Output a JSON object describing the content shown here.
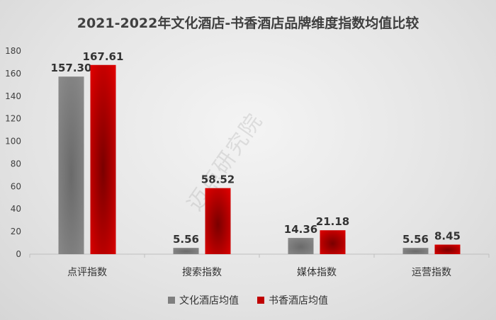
{
  "chart_data": {
    "type": "bar",
    "title": "2021-2022年文化酒店-书香酒店品牌维度指数均值比较",
    "categories": [
      "点评指数",
      "搜索指数",
      "媒体指数",
      "运营指数"
    ],
    "series": [
      {
        "name": "文化酒店均值",
        "values": [
          157.3,
          5.56,
          14.36,
          5.56
        ],
        "labels": [
          "157.30",
          "5.56",
          "14.36",
          "5.56"
        ],
        "color": "#7f7f7f"
      },
      {
        "name": "书香酒店均值",
        "values": [
          167.61,
          58.52,
          21.18,
          8.45
        ],
        "labels": [
          "167.61",
          "58.52",
          "21.18",
          "8.45"
        ],
        "color": "#c00000"
      }
    ],
    "ylim": [
      0,
      180
    ],
    "yticks": [
      0,
      20,
      40,
      60,
      80,
      100,
      120,
      140,
      160,
      180
    ],
    "xlabel": "",
    "ylabel": "",
    "grid": false,
    "legend": "bottom"
  },
  "watermark": "迈点研究院"
}
